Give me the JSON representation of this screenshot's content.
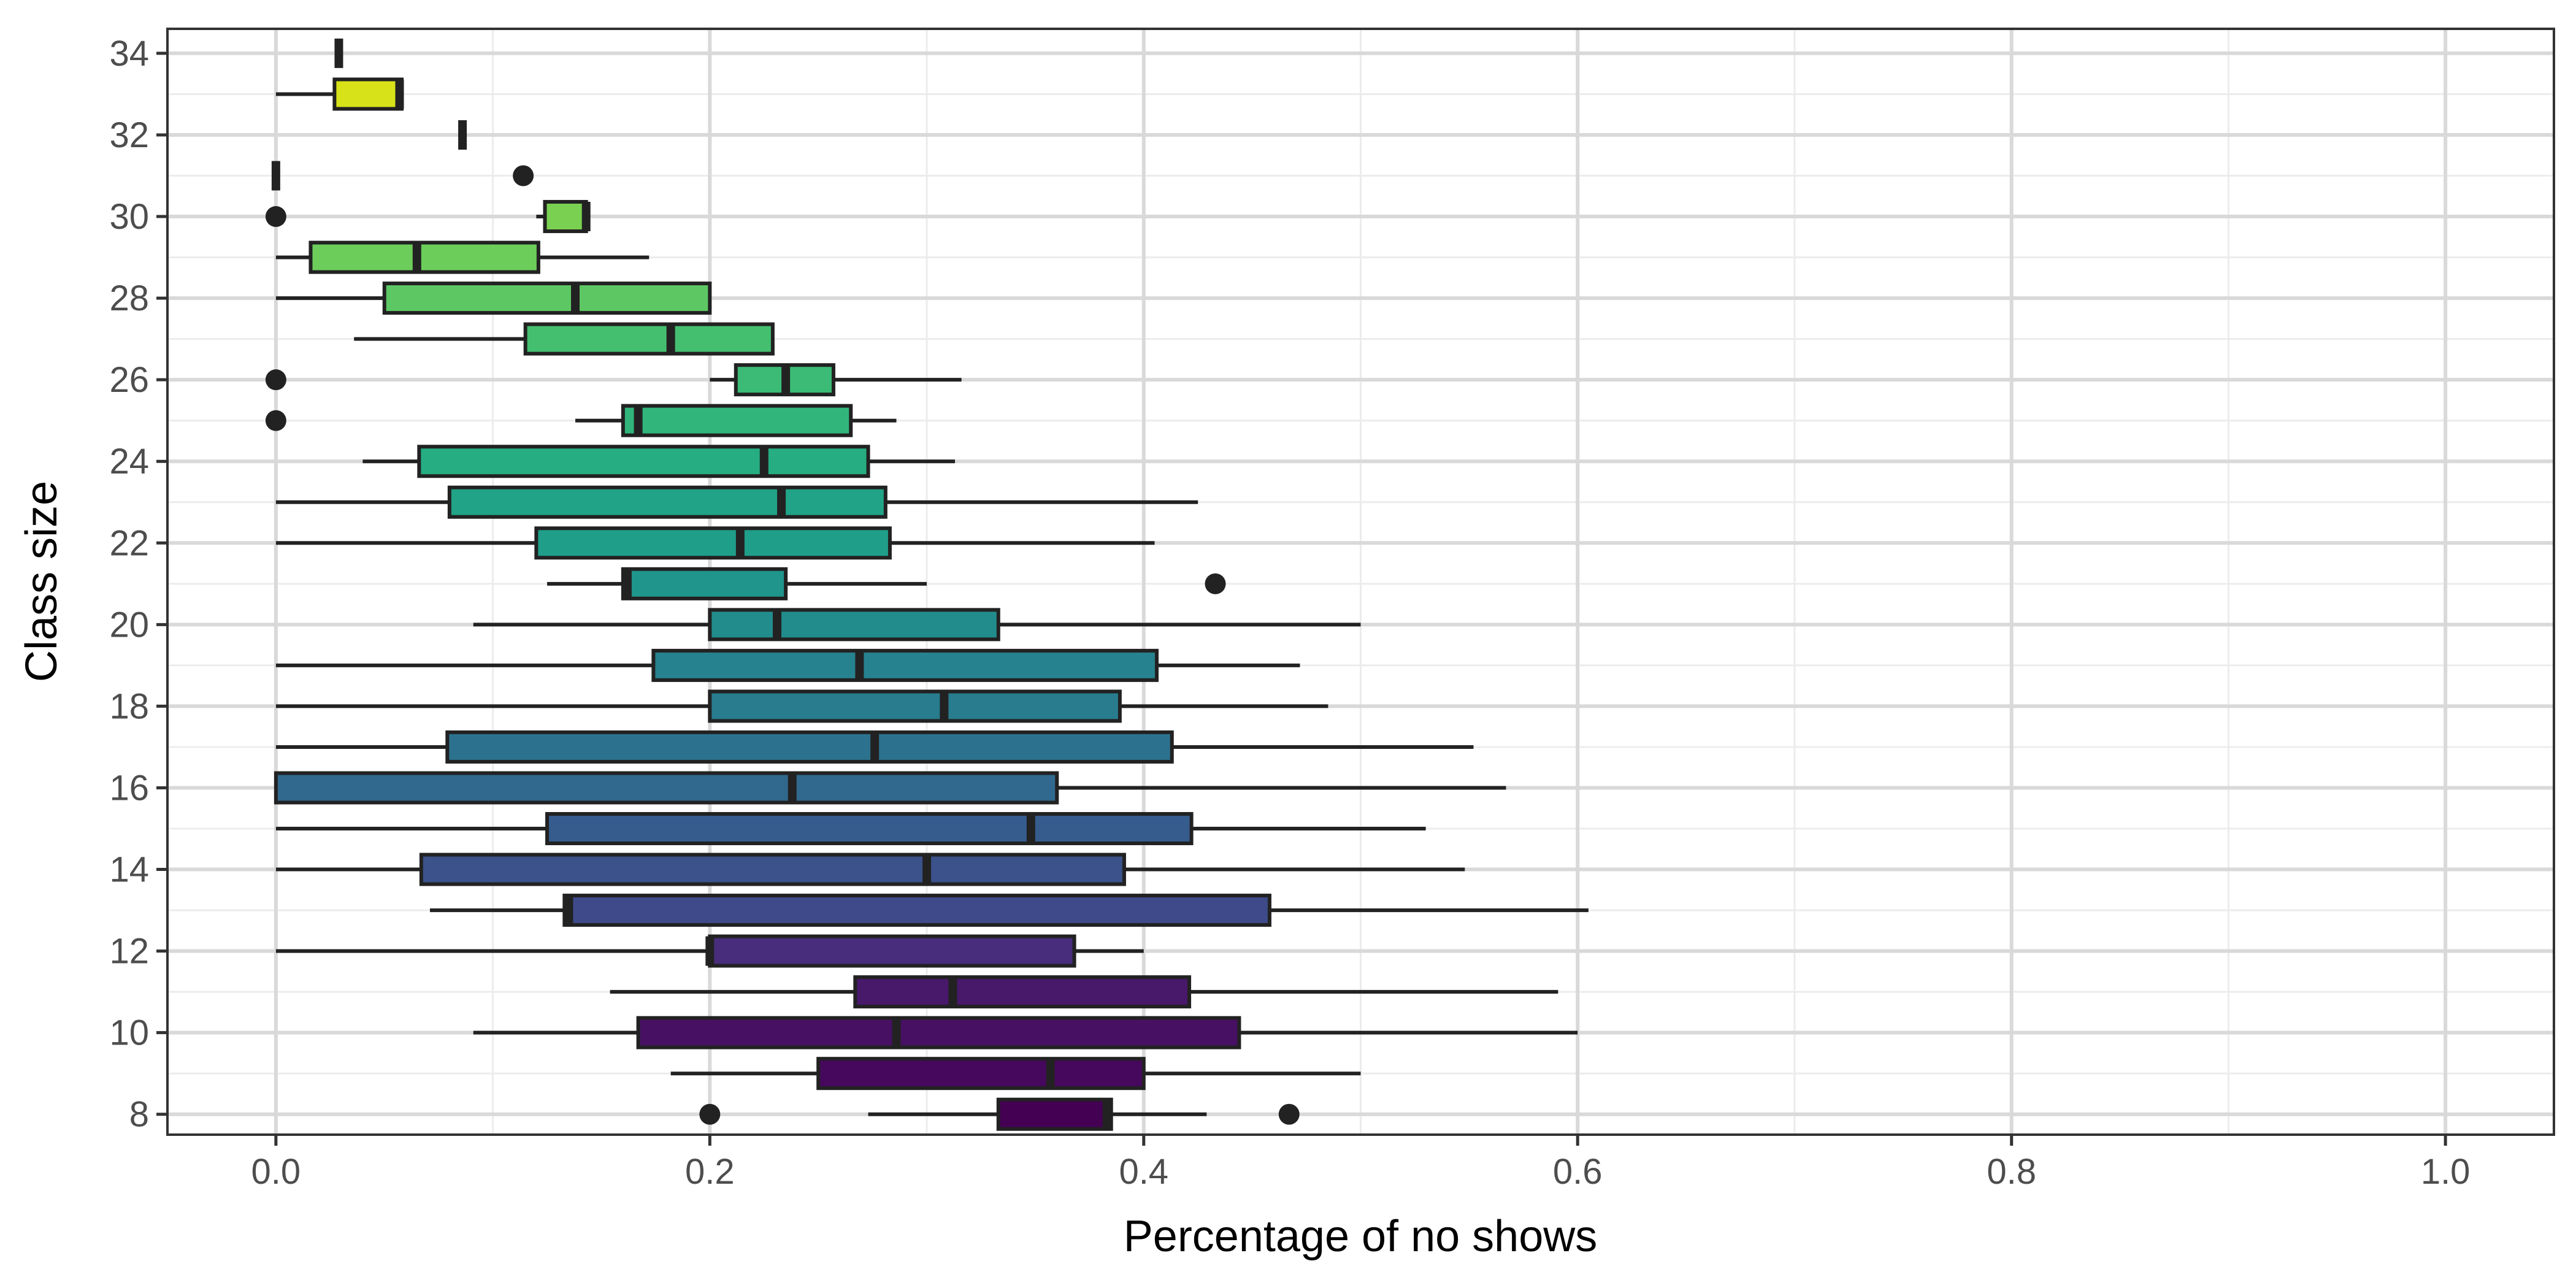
{
  "chart_data": {
    "type": "boxplot",
    "title": "",
    "xlabel": "Percentage of no shows",
    "ylabel": "Class size",
    "xlim": [
      -0.05,
      1.05
    ],
    "ylim": [
      7.5,
      34.6
    ],
    "x_ticks": [
      0.0,
      0.2,
      0.4,
      0.6,
      0.8,
      1.0
    ],
    "x_tick_labels": [
      "0.0",
      "0.2",
      "0.4",
      "0.6",
      "0.8",
      "1.0"
    ],
    "y_ticks": [
      8,
      10,
      12,
      14,
      16,
      18,
      20,
      22,
      24,
      26,
      28,
      30,
      32,
      34
    ],
    "y_tick_labels": [
      "8",
      "10",
      "12",
      "14",
      "16",
      "18",
      "20",
      "22",
      "24",
      "26",
      "28",
      "30",
      "32",
      "34"
    ],
    "grid": true,
    "legend": "none",
    "colormap": "viridis",
    "boxes": [
      {
        "y": 8,
        "whisker_low": 0.273,
        "q1": 0.333,
        "median": 0.383,
        "q3": 0.385,
        "whisker_high": 0.429,
        "outliers": [
          0.2,
          0.467
        ],
        "color": "#440154"
      },
      {
        "y": 9,
        "whisker_low": 0.182,
        "q1": 0.25,
        "median": 0.357,
        "q3": 0.4,
        "whisker_high": 0.5,
        "outliers": [],
        "color": "#46085C"
      },
      {
        "y": 10,
        "whisker_low": 0.091,
        "q1": 0.167,
        "median": 0.286,
        "q3": 0.444,
        "whisker_high": 0.6,
        "outliers": [],
        "color": "#471063"
      },
      {
        "y": 11,
        "whisker_low": 0.154,
        "q1": 0.267,
        "median": 0.312,
        "q3": 0.421,
        "whisker_high": 0.591,
        "outliers": [],
        "color": "#48186A"
      },
      {
        "y": 12,
        "whisker_low": 0.0,
        "q1": 0.2,
        "median": 0.2,
        "q3": 0.368,
        "whisker_high": 0.4,
        "outliers": [],
        "color": "#472D7B"
      },
      {
        "y": 13,
        "whisker_low": 0.071,
        "q1": 0.133,
        "median": 0.135,
        "q3": 0.458,
        "whisker_high": 0.605,
        "outliers": [],
        "color": "#3E4A89"
      },
      {
        "y": 14,
        "whisker_low": 0.0,
        "q1": 0.067,
        "median": 0.3,
        "q3": 0.391,
        "whisker_high": 0.548,
        "outliers": [],
        "color": "#3B528B"
      },
      {
        "y": 15,
        "whisker_low": 0.0,
        "q1": 0.125,
        "median": 0.348,
        "q3": 0.422,
        "whisker_high": 0.53,
        "outliers": [],
        "color": "#365C8D"
      },
      {
        "y": 16,
        "whisker_low": 0.0,
        "q1": 0.0,
        "median": 0.238,
        "q3": 0.36,
        "whisker_high": 0.567,
        "outliers": [],
        "color": "#31688E"
      },
      {
        "y": 17,
        "whisker_low": 0.0,
        "q1": 0.079,
        "median": 0.276,
        "q3": 0.413,
        "whisker_high": 0.552,
        "outliers": [],
        "color": "#2C728E"
      },
      {
        "y": 18,
        "whisker_low": 0.0,
        "q1": 0.2,
        "median": 0.308,
        "q3": 0.389,
        "whisker_high": 0.485,
        "outliers": [],
        "color": "#287C8E"
      },
      {
        "y": 19,
        "whisker_low": 0.0,
        "q1": 0.174,
        "median": 0.269,
        "q3": 0.406,
        "whisker_high": 0.472,
        "outliers": [],
        "color": "#26828E"
      },
      {
        "y": 20,
        "whisker_low": 0.091,
        "q1": 0.2,
        "median": 0.231,
        "q3": 0.333,
        "whisker_high": 0.5,
        "outliers": [],
        "color": "#228C8D"
      },
      {
        "y": 21,
        "whisker_low": 0.125,
        "q1": 0.16,
        "median": 0.162,
        "q3": 0.235,
        "whisker_high": 0.3,
        "outliers": [
          0.433
        ],
        "color": "#1F958B"
      },
      {
        "y": 22,
        "whisker_low": 0.0,
        "q1": 0.12,
        "median": 0.214,
        "q3": 0.283,
        "whisker_high": 0.405,
        "outliers": [],
        "color": "#1F9E89"
      },
      {
        "y": 23,
        "whisker_low": 0.0,
        "q1": 0.08,
        "median": 0.233,
        "q3": 0.281,
        "whisker_high": 0.425,
        "outliers": [],
        "color": "#20A386"
      },
      {
        "y": 24,
        "whisker_low": 0.04,
        "q1": 0.066,
        "median": 0.225,
        "q3": 0.273,
        "whisker_high": 0.313,
        "outliers": [],
        "color": "#26AD81"
      },
      {
        "y": 25,
        "whisker_low": 0.138,
        "q1": 0.16,
        "median": 0.167,
        "q3": 0.265,
        "whisker_high": 0.286,
        "outliers": [
          0.0
        ],
        "color": "#31B57B"
      },
      {
        "y": 26,
        "whisker_low": 0.2,
        "q1": 0.212,
        "median": 0.235,
        "q3": 0.257,
        "whisker_high": 0.316,
        "outliers": [
          0.0
        ],
        "color": "#3BBB75"
      },
      {
        "y": 27,
        "whisker_low": 0.036,
        "q1": 0.115,
        "median": 0.182,
        "q3": 0.229,
        "whisker_high": 0.229,
        "outliers": [],
        "color": "#44BF70"
      },
      {
        "y": 28,
        "whisker_low": 0.0,
        "q1": 0.05,
        "median": 0.138,
        "q3": 0.2,
        "whisker_high": 0.2,
        "outliers": [],
        "color": "#5DC863"
      },
      {
        "y": 29,
        "whisker_low": 0.0,
        "q1": 0.016,
        "median": 0.065,
        "q3": 0.121,
        "whisker_high": 0.172,
        "outliers": [],
        "color": "#6CCD5A"
      },
      {
        "y": 30,
        "whisker_low": 0.12,
        "q1": 0.124,
        "median": 0.143,
        "q3": 0.143,
        "whisker_high": 0.143,
        "outliers": [
          0.0
        ],
        "color": "#7AD151"
      },
      {
        "y": 31,
        "whisker_low": 0.0,
        "q1": 0.0,
        "median": 0.0,
        "q3": 0.0,
        "whisker_high": 0.0,
        "outliers": [
          0.114
        ],
        "color": "#A0DA39"
      },
      {
        "y": 32,
        "whisker_low": 0.086,
        "q1": 0.086,
        "median": 0.086,
        "q3": 0.086,
        "whisker_high": 0.086,
        "outliers": [],
        "color": "#C8E020"
      },
      {
        "y": 33,
        "whisker_low": 0.0,
        "q1": 0.027,
        "median": 0.057,
        "q3": 0.058,
        "whisker_high": 0.058,
        "outliers": [],
        "color": "#D8E219"
      },
      {
        "y": 34,
        "whisker_low": 0.029,
        "q1": 0.029,
        "median": 0.029,
        "q3": 0.029,
        "whisker_high": 0.029,
        "outliers": [],
        "color": "#FDE725"
      }
    ]
  }
}
